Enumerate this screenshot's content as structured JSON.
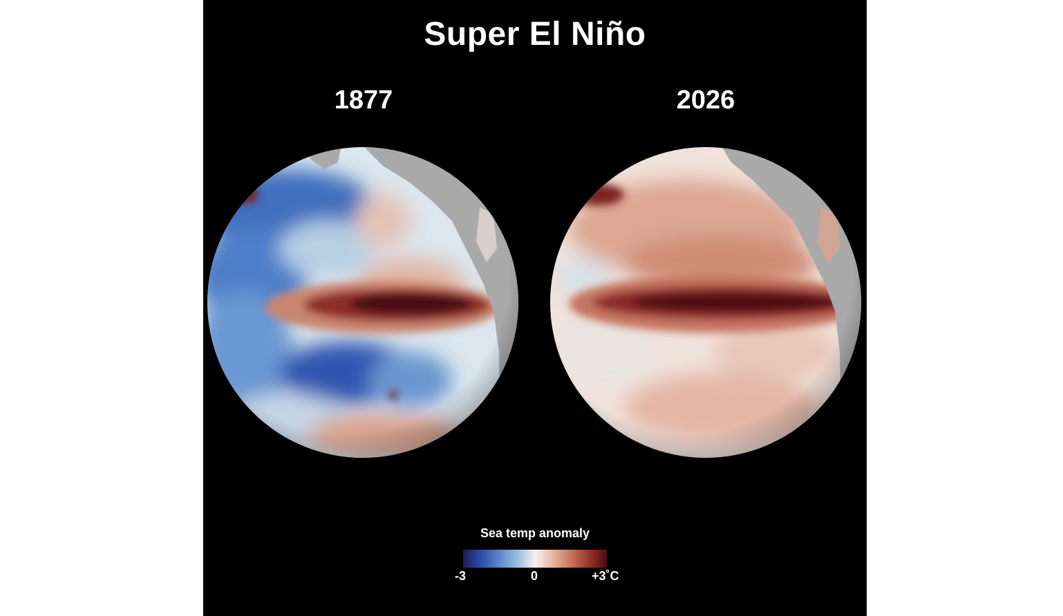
{
  "title": "Super El Niño",
  "maps": [
    {
      "year": "1877"
    },
    {
      "year": "2026"
    }
  ],
  "legend": {
    "title": "Sea temp anomaly",
    "min_label": "-3",
    "mid_label": "0",
    "max_label": "+3˚C",
    "colors": {
      "cold": "#2b4aa8",
      "neutral": "#f4f1ee",
      "warm": "#8e2a25",
      "land": "#a9a9a9"
    }
  }
}
